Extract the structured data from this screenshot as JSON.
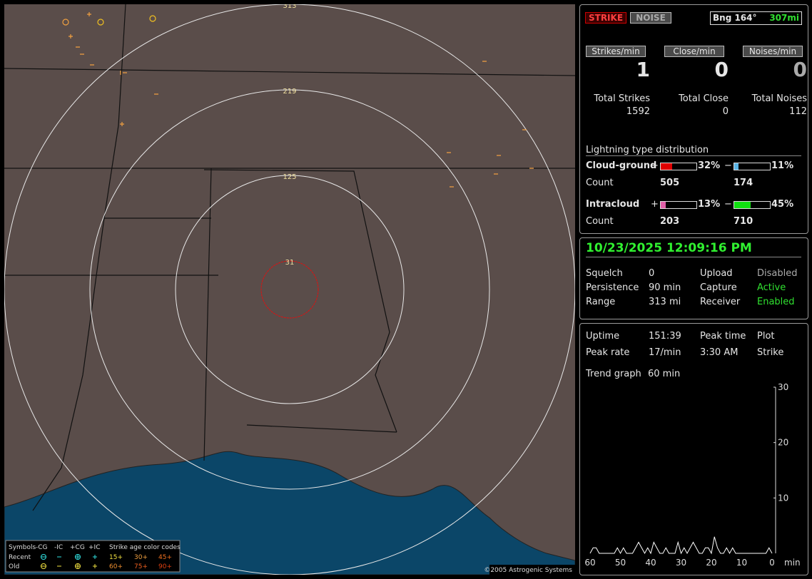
{
  "map": {
    "range_labels": [
      "313",
      "219",
      "125",
      "31"
    ],
    "copyright": "©2005 Astrogenic Systems",
    "legend": {
      "symbols": "Symbols",
      "columns": [
        "-CG",
        "-IC",
        "+CG",
        "+IC"
      ],
      "age_title": "Strike age color codes",
      "rows": [
        {
          "label": "Recent",
          "ages": [
            "15+",
            "30+",
            "45+"
          ]
        },
        {
          "label": "Old",
          "ages": [
            "60+",
            "75+",
            "90+"
          ]
        }
      ]
    }
  },
  "header": {
    "strike": "STRIKE",
    "noise": "NOISE",
    "bearing": "Bng 164°",
    "distance": "307mi"
  },
  "rates": [
    {
      "button": "Strikes/min",
      "value": 1,
      "total_label": "Total Strikes",
      "total": 1592
    },
    {
      "button": "Close/min",
      "value": 0,
      "total_label": "Total Close",
      "total": 0
    },
    {
      "button": "Noises/min",
      "value": 0,
      "total_label": "Total Noises",
      "total": 112
    }
  ],
  "distribution": {
    "title": "Lightning type distribution",
    "plus": "+",
    "minus": "−",
    "count_label": "Count",
    "types": [
      {
        "name": "Cloud-ground",
        "plus": {
          "value": 32,
          "label": "32%"
        },
        "plus_color": "#e00000",
        "minus": {
          "value": 11,
          "label": "11%"
        },
        "minus_color": "#5ab4e6",
        "plus_count": 505,
        "minus_count": 174
      },
      {
        "name": "Intracloud",
        "plus": {
          "value": 13,
          "label": "13%"
        },
        "plus_color": "#e060a8",
        "minus": {
          "value": 45,
          "label": "45%"
        },
        "minus_color": "#10e010",
        "plus_count": 203,
        "minus_count": 710
      }
    ]
  },
  "status": {
    "datetime": "10/23/2025 12:09:16 PM",
    "rows": [
      [
        "Squelch",
        "0",
        "Upload",
        "Disabled"
      ],
      [
        "Persistence",
        "90 min",
        "Capture",
        "Active"
      ],
      [
        "Range",
        "313 mi",
        "Receiver",
        "Enabled"
      ]
    ]
  },
  "stats": {
    "rows": [
      [
        "Uptime",
        "151:39",
        "Peak time",
        "Plot"
      ],
      [
        "Peak rate",
        "17/min",
        "3:30 AM",
        "Strike"
      ]
    ],
    "trend_label": "Trend graph",
    "trend_value": "60 min"
  },
  "chart_data": {
    "type": "line",
    "color": "#ffffff",
    "x_label": "min",
    "x": [
      60,
      59,
      58,
      57,
      56,
      55,
      54,
      53,
      52,
      51,
      50,
      49,
      48,
      47,
      46,
      45,
      44,
      43,
      42,
      41,
      40,
      39,
      38,
      37,
      36,
      35,
      34,
      33,
      32,
      31,
      30,
      29,
      28,
      27,
      26,
      25,
      24,
      23,
      22,
      21,
      20,
      19,
      18,
      17,
      16,
      15,
      14,
      13,
      12,
      11,
      10,
      9,
      8,
      7,
      6,
      5,
      4,
      3,
      2,
      1,
      0
    ],
    "values": [
      0,
      1,
      1,
      0,
      0,
      0,
      0,
      0,
      0,
      1,
      0,
      1,
      0,
      0,
      0,
      1,
      2,
      1,
      0,
      1,
      0,
      2,
      1,
      0,
      0,
      1,
      0,
      0,
      0,
      2,
      0,
      1,
      0,
      1,
      2,
      1,
      0,
      0,
      1,
      1,
      0,
      3,
      1,
      0,
      0,
      1,
      0,
      1,
      0,
      0,
      0,
      0,
      0,
      0,
      0,
      0,
      0,
      0,
      0,
      1,
      0
    ],
    "xlim": [
      60,
      0
    ],
    "ylim": [
      0,
      30
    ],
    "xticks": [
      60,
      50,
      40,
      30,
      20,
      10,
      0
    ],
    "yticks": [
      10,
      20,
      30
    ]
  }
}
